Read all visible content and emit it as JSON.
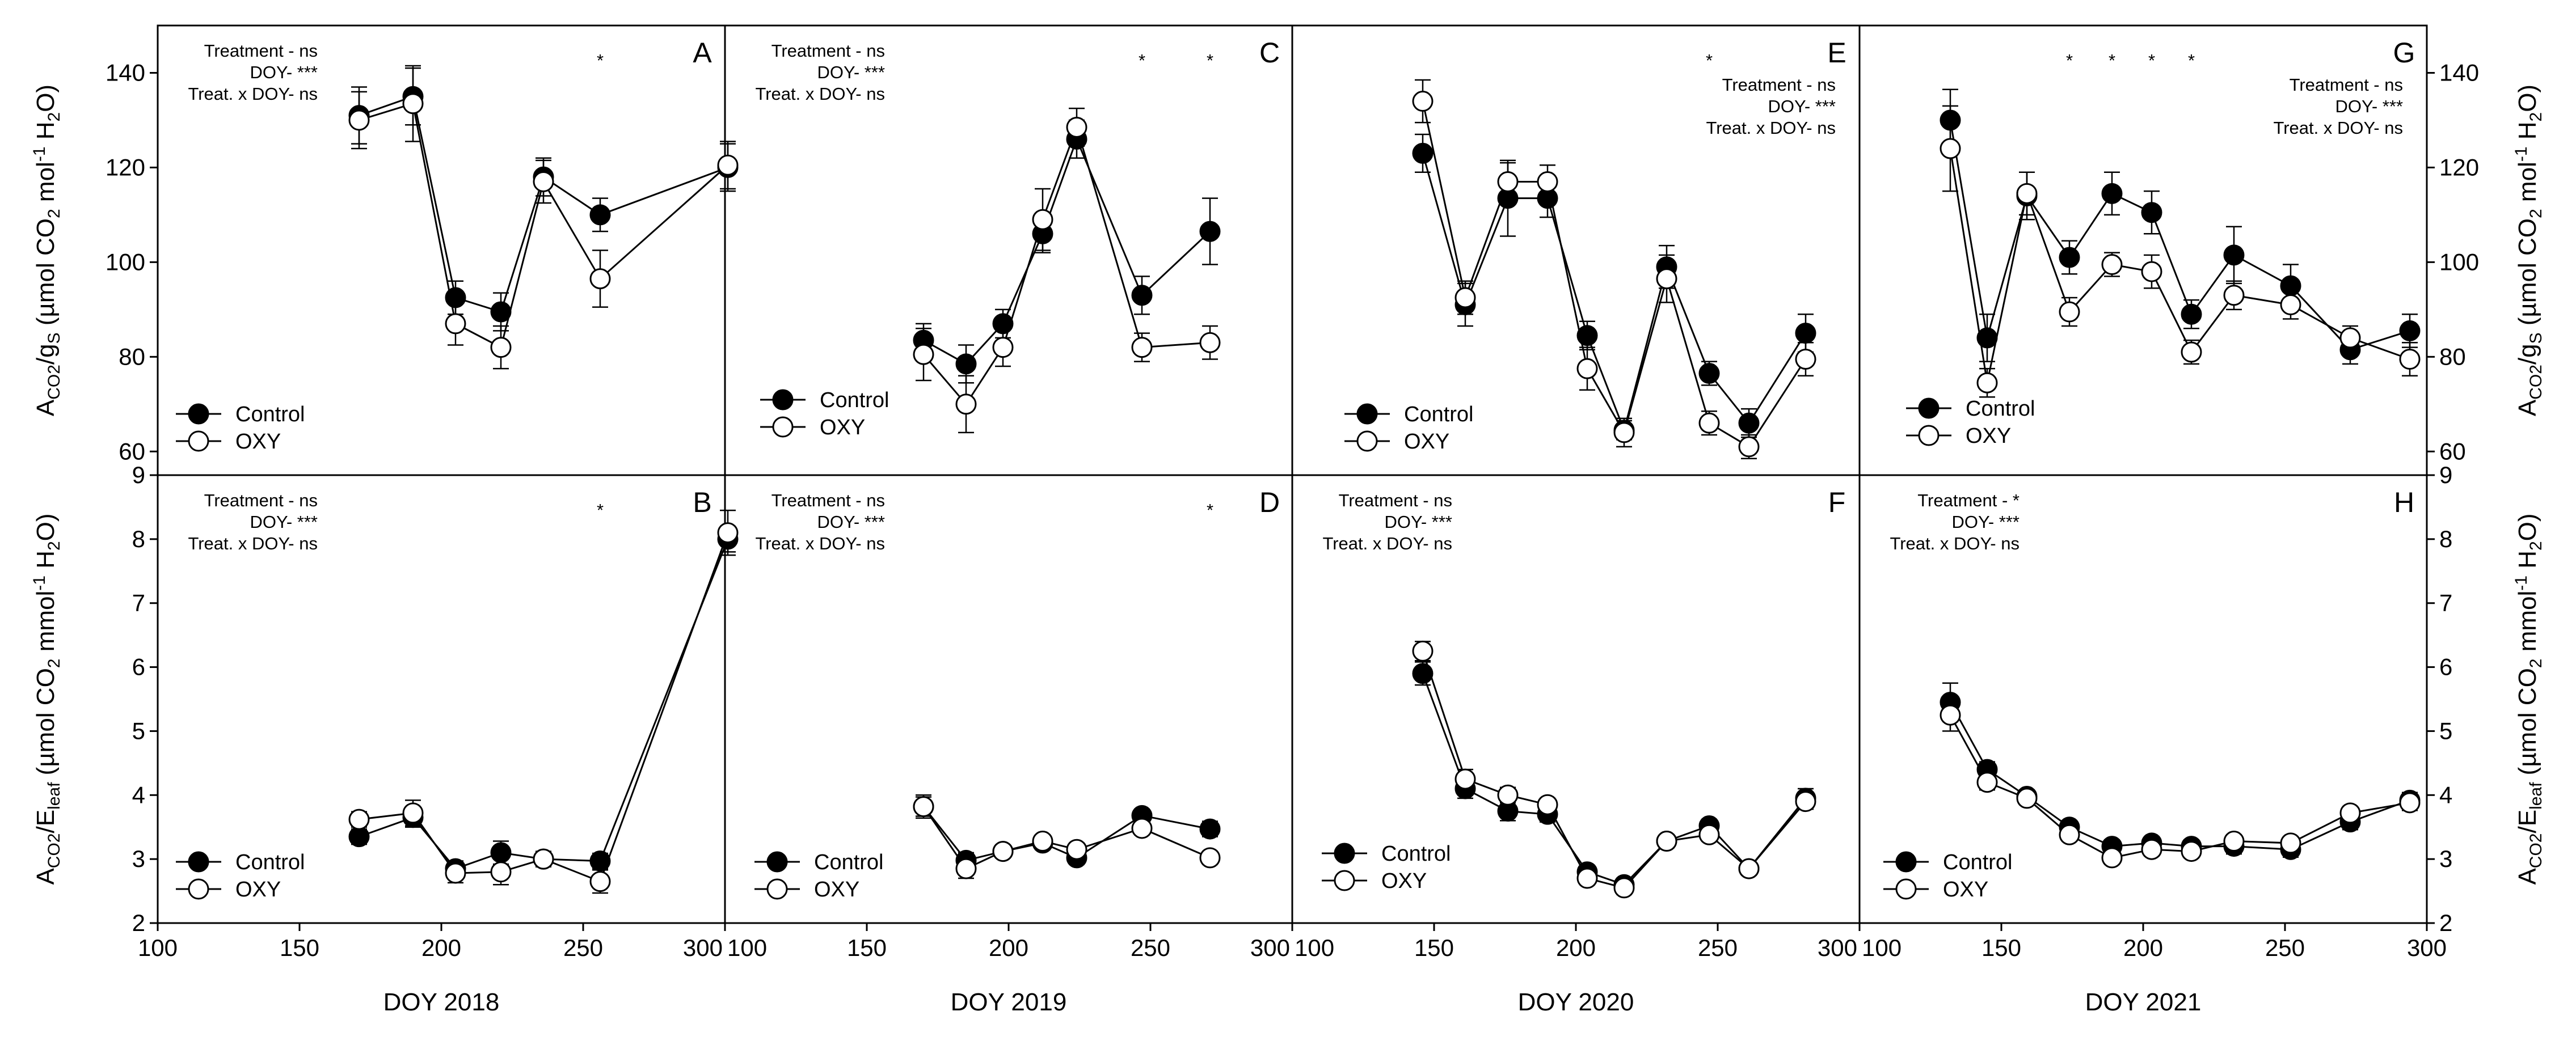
{
  "figure": {
    "series_names": [
      "Control",
      "OXY"
    ],
    "colors": {
      "control": "#000000",
      "oxy": "#ffffff",
      "stroke": "#000000"
    },
    "y_label_top": "A<sub>CO2</sub>/g<sub>S</sub> (µmol CO<sub>2</sub> mol<sup>-1</sup> H<sub>2</sub>O)",
    "y_label_bottom": "A<sub>CO2</sub>/E<sub>leaf</sub> (µmol CO<sub>2</sub> mmol<sup>-1</sup> H<sub>2</sub>O)",
    "x_ticks": [
      "100",
      "150",
      "200",
      "250",
      "300"
    ],
    "y_ticks_top": [
      "60",
      "80",
      "100",
      "120",
      "140"
    ],
    "y_ticks_bottom": [
      "2",
      "3",
      "4",
      "5",
      "6",
      "7",
      "8",
      "9"
    ]
  },
  "chart_data": [
    {
      "type": "line",
      "panel": "A",
      "xlabel": "DOY 2018",
      "xlim": [
        100,
        300
      ],
      "ylim": [
        55,
        150
      ],
      "stats": [
        "Treatment - ns",
        "DOY- ***",
        "Treat. x DOY- ns"
      ],
      "significance_x": [
        256
      ],
      "x": [
        171,
        190,
        205,
        221,
        236,
        256,
        301
      ],
      "series": [
        {
          "name": "Control",
          "values": [
            131,
            135,
            92.5,
            89.5,
            118,
            110,
            120
          ],
          "errors": [
            6,
            6,
            3.5,
            4,
            4,
            3.5,
            5
          ]
        },
        {
          "name": "OXY",
          "values": [
            130,
            133.5,
            87,
            82,
            117,
            96.5,
            120.5
          ],
          "errors": [
            6,
            8,
            4.5,
            4.5,
            4.5,
            6,
            5
          ]
        }
      ]
    },
    {
      "type": "line",
      "panel": "B",
      "xlabel": "DOY 2018",
      "xlim": [
        100,
        300
      ],
      "ylim": [
        2,
        9
      ],
      "stats": [
        "Treatment - ns",
        "DOY- ***",
        "Treat. x DOY- ns"
      ],
      "significance_x": [
        256
      ],
      "x": [
        171,
        190,
        205,
        221,
        236,
        256,
        301
      ],
      "series": [
        {
          "name": "Control",
          "values": [
            3.35,
            3.65,
            2.85,
            3.1,
            3.0,
            2.97,
            8.0
          ],
          "errors": [
            0.12,
            0.15,
            0.12,
            0.18,
            0.12,
            0.12,
            0.2
          ]
        },
        {
          "name": "OXY",
          "values": [
            3.62,
            3.72,
            2.78,
            2.8,
            3.0,
            2.65,
            8.1
          ],
          "errors": [
            0.12,
            0.2,
            0.15,
            0.2,
            0.12,
            0.18,
            0.35
          ]
        }
      ]
    },
    {
      "type": "line",
      "panel": "C",
      "xlabel": "DOY 2019",
      "xlim": [
        100,
        300
      ],
      "ylim": [
        55,
        150
      ],
      "stats": [
        "Treatment - ns",
        "DOY- ***",
        "Treat. x DOY- ns"
      ],
      "significance_x": [
        247,
        271
      ],
      "x": [
        170,
        185,
        198,
        212,
        224,
        247,
        271
      ],
      "series": [
        {
          "name": "Control",
          "values": [
            83.5,
            78.5,
            87,
            106,
            126,
            93,
            106.5
          ],
          "errors": [
            3.5,
            4,
            3,
            4,
            4,
            4,
            7
          ]
        },
        {
          "name": "OXY",
          "values": [
            80.5,
            70,
            82,
            109,
            128.5,
            82,
            83
          ],
          "errors": [
            5.5,
            6,
            4,
            6.5,
            4,
            3,
            3.5
          ]
        }
      ]
    },
    {
      "type": "line",
      "panel": "D",
      "xlabel": "DOY 2019",
      "xlim": [
        100,
        300
      ],
      "ylim": [
        2,
        9
      ],
      "stats": [
        "Treatment - ns",
        "DOY- ***",
        "Treat. x DOY- ns"
      ],
      "significance_x": [
        271
      ],
      "x": [
        170,
        185,
        198,
        212,
        224,
        247,
        271
      ],
      "series": [
        {
          "name": "Control",
          "values": [
            3.82,
            2.98,
            3.12,
            3.25,
            3.02,
            3.68,
            3.47
          ],
          "errors": [
            0.15,
            0.12,
            0.1,
            0.1,
            0.1,
            0.1,
            0.12
          ]
        },
        {
          "name": "OXY",
          "values": [
            3.82,
            2.85,
            3.12,
            3.28,
            3.15,
            3.48,
            3.02
          ],
          "errors": [
            0.18,
            0.15,
            0.1,
            0.1,
            0.1,
            0.1,
            0.1
          ]
        }
      ]
    },
    {
      "type": "line",
      "panel": "E",
      "xlabel": "DOY 2020",
      "xlim": [
        100,
        300
      ],
      "ylim": [
        55,
        150
      ],
      "stats": [
        "Treatment - ns",
        "DOY- ***",
        "Treat. x DOY- ns"
      ],
      "significance_x": [
        247
      ],
      "x": [
        146,
        161,
        176,
        190,
        204,
        217,
        232,
        247,
        261,
        281
      ],
      "series": [
        {
          "name": "Control",
          "values": [
            123,
            91,
            113.5,
            113.5,
            84.5,
            64.5,
            99,
            76.5,
            66,
            85
          ],
          "errors": [
            4,
            4.5,
            8,
            4,
            3,
            2,
            4.5,
            2.5,
            3,
            4
          ]
        },
        {
          "name": "OXY",
          "values": [
            134,
            92.5,
            117,
            117,
            77.5,
            64,
            96.5,
            66,
            61,
            79.5
          ],
          "errors": [
            4.5,
            3.5,
            4,
            3.5,
            4.5,
            3,
            5,
            2.5,
            2.5,
            3.5
          ]
        }
      ]
    },
    {
      "type": "line",
      "panel": "F",
      "xlabel": "DOY 2020",
      "xlim": [
        100,
        300
      ],
      "ylim": [
        2,
        9
      ],
      "stats": [
        "Treatment - ns",
        "DOY- ***",
        "Treat. x DOY- ns"
      ],
      "significance_x": [],
      "x": [
        146,
        161,
        176,
        190,
        204,
        217,
        232,
        247,
        261,
        281
      ],
      "series": [
        {
          "name": "Control",
          "values": [
            5.9,
            4.1,
            3.75,
            3.7,
            2.8,
            2.6,
            3.28,
            3.52,
            2.85,
            3.95
          ],
          "errors": [
            0.18,
            0.15,
            0.15,
            0.12,
            0.1,
            0.1,
            0.1,
            0.1,
            0.1,
            0.15
          ]
        },
        {
          "name": "OXY",
          "values": [
            6.25,
            4.25,
            4.0,
            3.85,
            2.7,
            2.55,
            3.28,
            3.38,
            2.85,
            3.9
          ],
          "errors": [
            0.15,
            0.15,
            0.12,
            0.1,
            0.1,
            0.1,
            0.1,
            0.1,
            0.1,
            0.12
          ]
        }
      ]
    },
    {
      "type": "line",
      "panel": "G",
      "xlabel": "DOY 2021",
      "xlim": [
        100,
        300
      ],
      "ylim": [
        55,
        150
      ],
      "stats": [
        "Treatment - ns",
        "DOY- ***",
        "Treat. x DOY- ns"
      ],
      "significance_x": [
        174,
        189,
        203,
        217
      ],
      "x": [
        132,
        145,
        159,
        174,
        189,
        203,
        217,
        232,
        252,
        273,
        294
      ],
      "series": [
        {
          "name": "Control",
          "values": [
            130,
            84,
            114,
            101,
            114.5,
            110.5,
            89,
            101.5,
            95,
            81.5,
            85.5
          ],
          "errors": [
            6.5,
            5,
            5,
            3.5,
            4.5,
            4.5,
            3,
            6,
            4.5,
            3,
            3.5
          ]
        },
        {
          "name": "OXY",
          "values": [
            124,
            74.5,
            114.5,
            89.5,
            99.5,
            98,
            81,
            93,
            91,
            84,
            79.5
          ],
          "errors": [
            9,
            3,
            4.5,
            3,
            2.5,
            3.5,
            2.5,
            3,
            3,
            2.5,
            3.5
          ]
        }
      ]
    },
    {
      "type": "line",
      "panel": "H",
      "xlabel": "DOY 2021",
      "xlim": [
        100,
        300
      ],
      "ylim": [
        2,
        9
      ],
      "stats": [
        "Treatment - *",
        "DOY- ***",
        "Treat. x DOY- ns"
      ],
      "significance_x": [],
      "x": [
        132,
        145,
        159,
        174,
        189,
        203,
        217,
        232,
        252,
        273,
        294
      ],
      "series": [
        {
          "name": "Control",
          "values": [
            5.45,
            4.4,
            3.98,
            3.5,
            3.2,
            3.25,
            3.2,
            3.2,
            3.15,
            3.58,
            3.92
          ],
          "errors": [
            0.3,
            0.12,
            0.1,
            0.1,
            0.1,
            0.1,
            0.1,
            0.12,
            0.12,
            0.12,
            0.12
          ]
        },
        {
          "name": "OXY",
          "values": [
            5.25,
            4.2,
            3.95,
            3.38,
            3.02,
            3.15,
            3.12,
            3.28,
            3.25,
            3.72,
            3.88
          ],
          "errors": [
            0.25,
            0.12,
            0.1,
            0.1,
            0.1,
            0.1,
            0.1,
            0.1,
            0.1,
            0.1,
            0.12
          ]
        }
      ]
    }
  ]
}
